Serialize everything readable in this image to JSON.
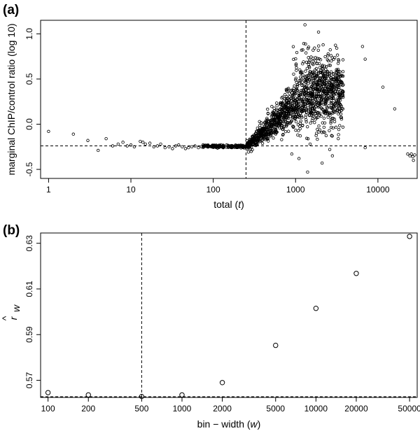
{
  "chart_data": [
    {
      "panel": "(a)",
      "type": "scatter",
      "xlabel_prefix": "total (",
      "xlabel_var": "t",
      "xlabel_suffix": ")",
      "ylabel": "marginal ChIP/control ratio (log 10)",
      "x_scale": "log",
      "xlim": [
        0.8,
        30000
      ],
      "ylim": [
        -0.6,
        1.15
      ],
      "x_ticks": [
        {
          "value": 1,
          "label": "1"
        },
        {
          "value": 10,
          "label": "10"
        },
        {
          "value": 100,
          "label": "100"
        },
        {
          "value": 1000,
          "label": "1000"
        },
        {
          "value": 10000,
          "label": "10000"
        }
      ],
      "y_ticks": [
        {
          "value": -0.5,
          "label": "-0.5"
        },
        {
          "value": 0.0,
          "label": "0.0"
        },
        {
          "value": 0.5,
          "label": "0.5"
        },
        {
          "value": 1.0,
          "label": "1.0"
        }
      ],
      "vline_x": 250,
      "hline_y": -0.24,
      "points": [
        [
          1,
          -0.08
        ],
        [
          2,
          -0.11
        ],
        [
          3,
          -0.18
        ],
        [
          4,
          -0.29
        ],
        [
          5,
          -0.16
        ],
        [
          6,
          -0.24
        ],
        [
          7,
          -0.22
        ],
        [
          8,
          -0.2
        ],
        [
          9,
          -0.24
        ],
        [
          10,
          -0.23
        ],
        [
          11,
          -0.25
        ],
        [
          13,
          -0.19
        ],
        [
          14,
          -0.2
        ],
        [
          15,
          -0.22
        ],
        [
          17,
          -0.21
        ],
        [
          19,
          -0.25
        ],
        [
          21,
          -0.24
        ],
        [
          23,
          -0.22
        ],
        [
          26,
          -0.26
        ],
        [
          29,
          -0.25
        ],
        [
          32,
          -0.27
        ],
        [
          35,
          -0.24
        ],
        [
          38,
          -0.23
        ],
        [
          42,
          -0.25
        ],
        [
          46,
          -0.27
        ],
        [
          50,
          -0.26
        ],
        [
          55,
          -0.25
        ],
        [
          60,
          -0.24
        ],
        [
          66,
          -0.26
        ],
        [
          72,
          -0.25
        ],
        [
          1300,
          1.1
        ],
        [
          1900,
          1.02
        ],
        [
          6500,
          0.86
        ],
        [
          7000,
          0.72
        ],
        [
          11500,
          0.41
        ],
        [
          16000,
          0.17
        ],
        [
          7000,
          -0.26
        ],
        [
          1400,
          -0.53
        ],
        [
          2100,
          -0.43
        ],
        [
          1500,
          -0.22
        ],
        [
          2600,
          -0.28
        ],
        [
          3300,
          -0.16
        ],
        [
          900,
          -0.33
        ],
        [
          1100,
          -0.38
        ],
        [
          2800,
          -0.35
        ],
        [
          1800,
          -0.1
        ],
        [
          23000,
          -0.33
        ],
        [
          24500,
          -0.35
        ],
        [
          25500,
          -0.33
        ],
        [
          26500,
          -0.36
        ],
        [
          27000,
          -0.4
        ],
        [
          28000,
          -0.34
        ]
      ],
      "points_note": "dense cloud of additional points between t=100 and t=4000 generated by script"
    },
    {
      "panel": "(b)",
      "type": "scatter",
      "xlabel_prefix": "bin − width (",
      "xlabel_var": "w",
      "xlabel_suffix": ")",
      "ylabel_main": "r",
      "ylabel_sub": "w",
      "x_scale": "log",
      "xlim": [
        88,
        57000
      ],
      "ylim": [
        0.5625,
        0.6345
      ],
      "x_ticks": [
        {
          "value": 100,
          "label": "100"
        },
        {
          "value": 200,
          "label": "200"
        },
        {
          "value": 500,
          "label": "500"
        },
        {
          "value": 1000,
          "label": "1000"
        },
        {
          "value": 2000,
          "label": "2000"
        },
        {
          "value": 5000,
          "label": "5000"
        },
        {
          "value": 10000,
          "label": "10000"
        },
        {
          "value": 20000,
          "label": "20000"
        },
        {
          "value": 50000,
          "label": "50000"
        }
      ],
      "y_ticks": [
        {
          "value": 0.57,
          "label": "0.57"
        },
        {
          "value": 0.59,
          "label": "0.59"
        },
        {
          "value": 0.61,
          "label": "0.61"
        },
        {
          "value": 0.63,
          "label": "0.63"
        }
      ],
      "vline_x": 500,
      "hline_y": 0.5628,
      "points": [
        [
          100,
          0.5646
        ],
        [
          200,
          0.5636
        ],
        [
          500,
          0.5629
        ],
        [
          1000,
          0.5636
        ],
        [
          2000,
          0.569
        ],
        [
          5000,
          0.5853
        ],
        [
          10000,
          0.6015
        ],
        [
          20000,
          0.6168
        ],
        [
          50000,
          0.633
        ]
      ]
    }
  ]
}
